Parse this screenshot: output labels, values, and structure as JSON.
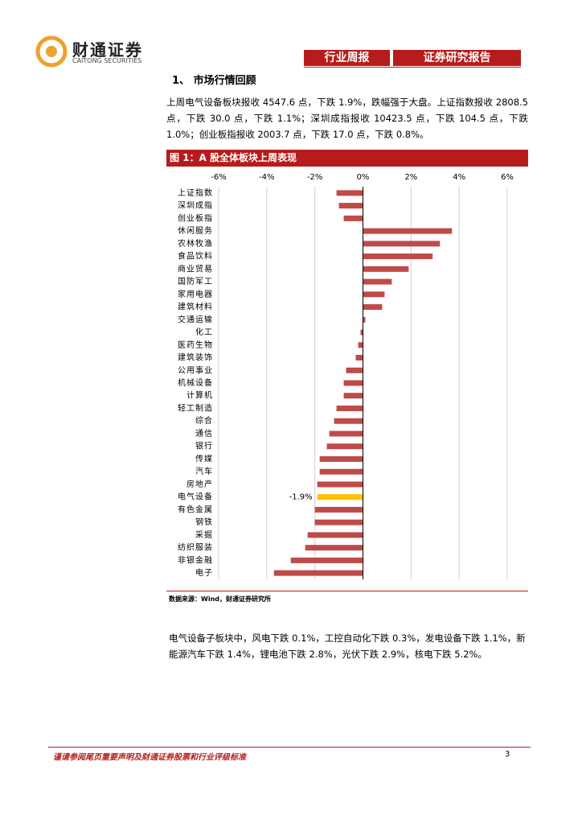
{
  "header": {
    "company": "财通证券",
    "company_en": "CAITONG SECURITIES",
    "tags": [
      "行业周报",
      "证券研究报告"
    ]
  },
  "section_title": "1、 市场行情回顾",
  "paragraph1": "上周电气设备板块报收 4547.6 点，下跌 1.9%，跌幅强于大盘。上证指数报收 2808.5 点，下跌 30.0 点，下跌 1.1%；深圳成指报收 10423.5 点，下跌 104.5 点，下跌 1.0%；创业板指报收 2003.7 点，下跌 17.0 点，下跌 0.8%。",
  "figure_title": "图 1：A 股全体板块上周表现",
  "chart_data": {
    "type": "hbar",
    "categories": [
      "上证指数",
      "深圳成指",
      "创业板指",
      "休闲服务",
      "农林牧渔",
      "食品饮料",
      "商业贸易",
      "国防军工",
      "家用电器",
      "建筑材料",
      "交通运输",
      "化工",
      "医药生物",
      "建筑装饰",
      "公用事业",
      "机械设备",
      "计算机",
      "轻工制造",
      "综合",
      "通信",
      "银行",
      "传媒",
      "汽车",
      "房地产",
      "电气设备",
      "有色金属",
      "钢铁",
      "采掘",
      "纺织服装",
      "非银金融",
      "电子"
    ],
    "values": [
      -1.1,
      -1.0,
      -0.8,
      3.7,
      3.2,
      2.9,
      1.9,
      1.2,
      0.9,
      0.8,
      0.1,
      -0.1,
      -0.2,
      -0.3,
      -0.7,
      -0.8,
      -0.8,
      -1.1,
      -1.2,
      -1.4,
      -1.5,
      -1.8,
      -1.8,
      -1.9,
      -1.9,
      -2.0,
      -2.0,
      -2.3,
      -2.4,
      -3.0,
      -3.7
    ],
    "value_labels": [
      null,
      null,
      null,
      null,
      null,
      null,
      null,
      null,
      null,
      null,
      null,
      null,
      null,
      null,
      null,
      null,
      null,
      null,
      null,
      null,
      null,
      null,
      null,
      null,
      "-1.9%",
      null,
      null,
      null,
      null,
      null,
      null
    ],
    "colors": [
      "#be4b48",
      "#be4b48",
      "#be4b48",
      "#be4b48",
      "#be4b48",
      "#be4b48",
      "#be4b48",
      "#be4b48",
      "#be4b48",
      "#be4b48",
      "#be4b48",
      "#be4b48",
      "#be4b48",
      "#be4b48",
      "#be4b48",
      "#be4b48",
      "#be4b48",
      "#be4b48",
      "#be4b48",
      "#be4b48",
      "#be4b48",
      "#be4b48",
      "#be4b48",
      "#be4b48",
      "#ffc000",
      "#be4b48",
      "#be4b48",
      "#be4b48",
      "#be4b48",
      "#be4b48",
      "#be4b48"
    ],
    "xlim": [
      -6,
      6
    ],
    "xticks": [
      {
        "value": -6,
        "label": "-6%"
      },
      {
        "value": -4,
        "label": "-4%"
      },
      {
        "value": -2,
        "label": "-2%"
      },
      {
        "value": 0,
        "label": "0%"
      },
      {
        "value": 2,
        "label": "2%"
      },
      {
        "value": 4,
        "label": "4%"
      },
      {
        "value": 6,
        "label": "6%"
      }
    ],
    "grid": true
  },
  "source": "数据来源：Wind，财通证券研究所",
  "paragraph2": "电气设备子板块中，风电下跌 0.1%，工控自动化下跌 0.3%，发电设备下跌 1.1%，新能源汽车下跌 1.4%，锂电池下跌 2.8%，光伏下跌 2.9%，核电下跌 5.2%。",
  "footer": {
    "disclaimer": "谨请参阅尾页重要声明及财通证券股票和行业评级标准",
    "page": "3"
  }
}
